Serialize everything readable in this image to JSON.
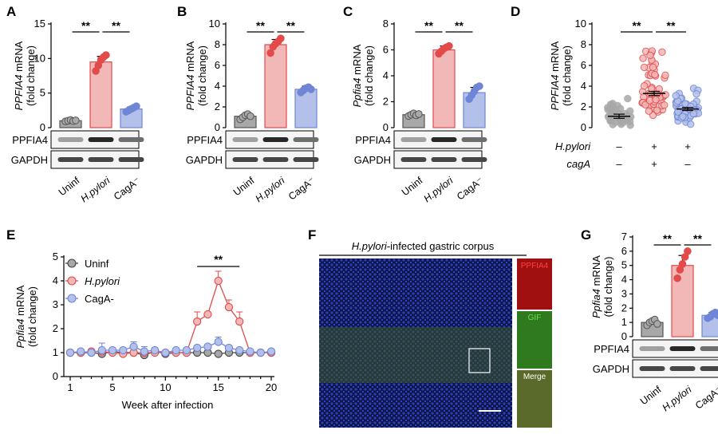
{
  "colors": {
    "uninf": "#a8a8a8",
    "hpylori": "#e34a4a",
    "hpylori_fill": "#f2b7b7",
    "caga": "#6f86d6",
    "caga_fill": "#b3c1ea",
    "dapi": "#2a3fb8",
    "pppfia4": "#e02020",
    "gif": "#55c43a",
    "bracket": "#000000"
  },
  "chart_data": [
    {
      "panel": "A",
      "type": "bar",
      "ylabel_gene": "PPFIA4",
      "ylabel_suffix": " mRNA",
      "ylabel_unit": "(fold change)",
      "yticks": [
        "0",
        "5",
        "10",
        "15"
      ],
      "ylim": [
        0,
        15
      ],
      "categories": [
        "Uninf",
        "H.pylori",
        "CagA⁻"
      ],
      "values": [
        1.0,
        9.5,
        2.7
      ],
      "errors": [
        0.2,
        0.8,
        0.3
      ],
      "points": [
        [
          0.9,
          1.0,
          1.1,
          0.95,
          1.05
        ],
        [
          8.2,
          9.0,
          9.8,
          10.2,
          10.5
        ],
        [
          2.3,
          2.5,
          2.7,
          2.9,
          3.1
        ]
      ],
      "significance": [
        "**",
        "**"
      ],
      "blots": [
        "PPFIA4",
        "GAPDH"
      ]
    },
    {
      "panel": "B",
      "type": "bar",
      "ylabel_gene": "PPFIA4",
      "ylabel_suffix": " mRNA",
      "ylabel_unit": "(fold change)",
      "yticks": [
        "0",
        "2",
        "4",
        "6",
        "8",
        "10"
      ],
      "ylim": [
        0,
        10
      ],
      "categories": [
        "Uninf",
        "H.pylori",
        "CagA⁻"
      ],
      "values": [
        1.1,
        8.0,
        3.7
      ],
      "errors": [
        0.2,
        0.5,
        0.3
      ],
      "points": [
        [
          0.8,
          1.0,
          1.2,
          1.3,
          1.1
        ],
        [
          7.2,
          7.8,
          8.1,
          8.3,
          8.6
        ],
        [
          3.4,
          3.6,
          3.8,
          3.9,
          3.7
        ]
      ],
      "significance": [
        "**",
        "**"
      ],
      "blots": [
        "PPFIA4",
        "GAPDH"
      ]
    },
    {
      "panel": "C",
      "type": "bar",
      "ylabel_gene": "Ppfia4",
      "ylabel_suffix": " mRNA",
      "ylabel_unit": "(fold change)",
      "yticks": [
        "0",
        "2",
        "4",
        "6",
        "8"
      ],
      "ylim": [
        0,
        8
      ],
      "categories": [
        "Uninf",
        "H.pylori",
        "CagA⁻"
      ],
      "values": [
        1.0,
        6.0,
        2.7
      ],
      "errors": [
        0.1,
        0.3,
        0.4
      ],
      "points": [
        [
          0.9,
          1.0,
          1.1,
          0.95,
          1.05
        ],
        [
          5.7,
          5.9,
          6.1,
          6.2,
          6.3
        ],
        [
          2.2,
          2.5,
          2.8,
          3.1,
          3.2
        ]
      ],
      "significance": [
        "**",
        "**"
      ],
      "blots": [
        "PPFIA4",
        "GAPDH"
      ]
    },
    {
      "panel": "D",
      "type": "scatter",
      "ylabel_gene": "PPFIA4",
      "ylabel_suffix": " mRNA",
      "ylabel_unit": "(fold change)",
      "yticks": [
        "0",
        "2",
        "4",
        "6",
        "8",
        "10"
      ],
      "ylim": [
        0,
        10
      ],
      "groups": [
        "Uninf",
        "H.pylori",
        "CagA⁻"
      ],
      "means": [
        1.1,
        3.3,
        1.8
      ],
      "sem": [
        0.2,
        0.2,
        0.15
      ],
      "ranges": [
        [
          0.1,
          3.0
        ],
        [
          0.8,
          8.5
        ],
        [
          0.3,
          4.0
        ]
      ],
      "hpylori_row": {
        "label": "H.pylori",
        "values": [
          "–",
          "+",
          "+"
        ]
      },
      "caga_row": {
        "label": "cagA",
        "values": [
          "–",
          "+",
          "–"
        ]
      },
      "significance": [
        "**",
        "**"
      ]
    },
    {
      "panel": "E",
      "type": "line",
      "ylabel_gene": "Ppfia4",
      "ylabel_suffix": " mRNA",
      "ylabel_unit": "(fold change)",
      "xlabel": "Week after infection",
      "xticks": [
        "1",
        "5",
        "10",
        "15",
        "20"
      ],
      "yticks": [
        "0",
        "1",
        "2",
        "3",
        "4",
        "5"
      ],
      "xlim": [
        1,
        20
      ],
      "ylim": [
        0,
        5
      ],
      "x": [
        1,
        2,
        3,
        4,
        5,
        6,
        7,
        8,
        9,
        10,
        11,
        12,
        13,
        14,
        15,
        16,
        17,
        18,
        19,
        20
      ],
      "series": [
        {
          "name": "Uninf",
          "values": [
            1.0,
            1.0,
            1.0,
            0.95,
            1.05,
            1.0,
            1.0,
            0.9,
            1.05,
            0.95,
            1.0,
            1.0,
            1.0,
            1.0,
            0.95,
            1.0,
            1.0,
            1.0,
            1.0,
            1.0
          ],
          "errors": [
            0.05,
            0.05,
            0.05,
            0.1,
            0.05,
            0.05,
            0.05,
            0.1,
            0.05,
            0.05,
            0.05,
            0.05,
            0.05,
            0.05,
            0.1,
            0.05,
            0.05,
            0.05,
            0.05,
            0.05
          ]
        },
        {
          "name": "H.pylori",
          "values": [
            1.0,
            1.0,
            1.05,
            1.05,
            1.0,
            0.95,
            1.0,
            1.0,
            1.0,
            1.0,
            1.0,
            1.0,
            2.3,
            2.6,
            4.0,
            2.9,
            2.3,
            1.0,
            1.0,
            1.0
          ],
          "errors": [
            0.05,
            0.05,
            0.05,
            0.05,
            0.05,
            0.05,
            0.05,
            0.05,
            0.05,
            0.05,
            0.05,
            0.05,
            0.4,
            0.05,
            0.4,
            0.3,
            0.4,
            0.05,
            0.05,
            0.05
          ]
        },
        {
          "name": "CagA-",
          "values": [
            1.0,
            1.05,
            1.0,
            1.1,
            1.1,
            1.1,
            1.25,
            1.05,
            1.1,
            1.0,
            1.1,
            1.1,
            1.2,
            1.25,
            1.45,
            1.2,
            1.1,
            1.05,
            1.0,
            1.05
          ],
          "errors": [
            0.05,
            0.1,
            0.05,
            0.3,
            0.1,
            0.1,
            0.2,
            0.2,
            0.1,
            0.05,
            0.1,
            0.1,
            0.1,
            0.1,
            0.2,
            0.1,
            0.1,
            0.05,
            0.05,
            0.05
          ]
        }
      ],
      "significance": "**",
      "sig_range": [
        13,
        17
      ]
    },
    {
      "panel": "F",
      "type": "image",
      "title_italic": "H.pylori",
      "title_rest": "-infected gastric corpus",
      "insets": [
        "PPFIA4",
        "GIF",
        "Merge"
      ]
    },
    {
      "panel": "G",
      "type": "bar",
      "ylabel_gene": "Ppfia4",
      "ylabel_suffix": " mRNA",
      "ylabel_unit": "(fold change)",
      "yticks": [
        "0",
        "1",
        "2",
        "3",
        "4",
        "5",
        "6",
        "7"
      ],
      "ylim": [
        0,
        7
      ],
      "categories": [
        "Uninf",
        "H.pylori",
        "CagA⁻"
      ],
      "values": [
        1.0,
        5.0,
        1.5
      ],
      "errors": [
        0.15,
        0.7,
        0.2
      ],
      "points": [
        [
          0.8,
          1.0,
          1.1,
          1.2,
          0.9
        ],
        [
          4.1,
          4.7,
          5.1,
          5.6,
          6.0
        ],
        [
          1.3,
          1.4,
          1.6,
          1.7,
          1.5
        ]
      ],
      "significance": [
        "**",
        "**"
      ],
      "blots": [
        "PPFIA4",
        "GAPDH"
      ]
    }
  ]
}
